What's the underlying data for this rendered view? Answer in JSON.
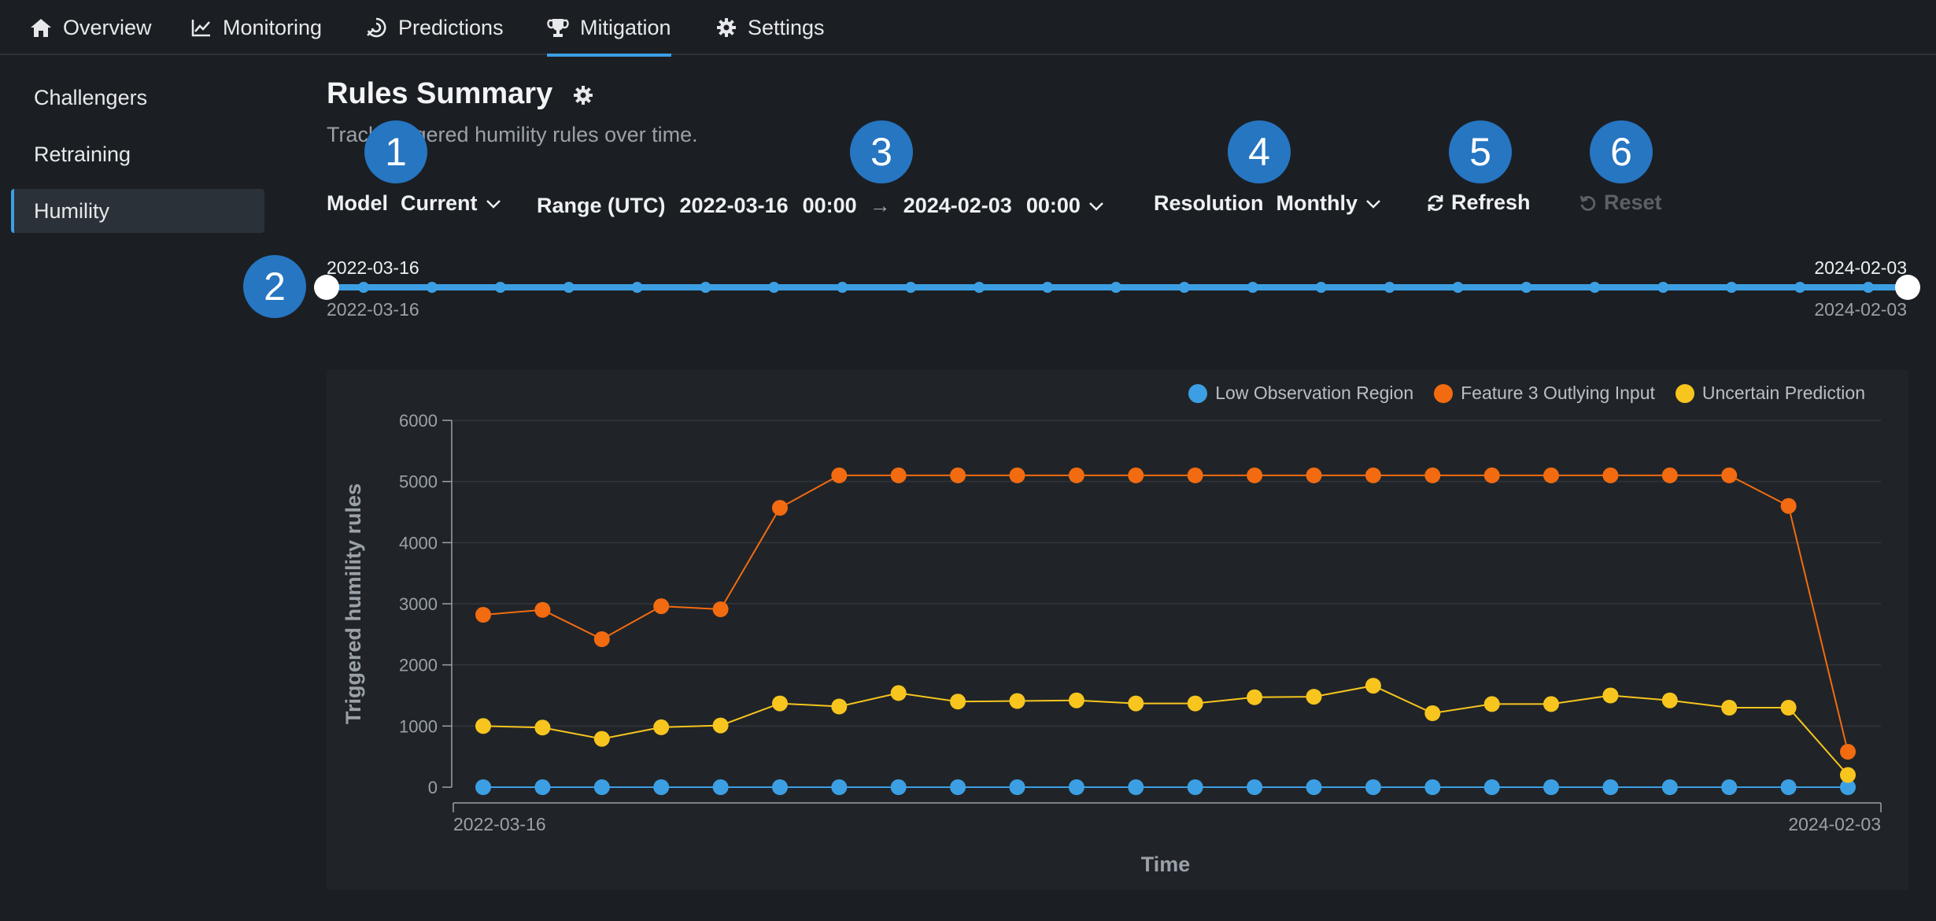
{
  "nav": {
    "tabs": [
      {
        "label": "Overview"
      },
      {
        "label": "Monitoring"
      },
      {
        "label": "Predictions"
      },
      {
        "label": "Mitigation"
      },
      {
        "label": "Settings"
      }
    ],
    "active_index": 3
  },
  "sidebar": {
    "items": [
      {
        "label": "Challengers"
      },
      {
        "label": "Retraining"
      },
      {
        "label": "Humility"
      }
    ],
    "active_index": 2
  },
  "header": {
    "title": "Rules Summary",
    "subtitle": "Track triggered humility rules over time."
  },
  "controls": {
    "model_label": "Model",
    "model_value": "Current",
    "range_label": "Range (UTC)",
    "range_start_date": "2022-03-16",
    "range_start_time": "00:00",
    "range_arrow": "→",
    "range_end_date": "2024-02-03",
    "range_end_time": "00:00",
    "resolution_label": "Resolution",
    "resolution_value": "Monthly",
    "refresh_label": "Refresh",
    "reset_label": "Reset"
  },
  "badges": [
    "1",
    "2",
    "3",
    "4",
    "5",
    "6"
  ],
  "slider": {
    "start_top": "2022-03-16",
    "end_top": "2024-02-03",
    "start_bottom": "2022-03-16",
    "end_bottom": "2024-02-03",
    "tick_count": 23
  },
  "colors": {
    "accent": "#3d9fe3",
    "low_observation": "#3d9fe3",
    "outlying": "#f26b10",
    "uncertain": "#f7c51e"
  },
  "chart_data": {
    "type": "line",
    "title": "",
    "xlabel": "Time",
    "ylabel": "Triggered humility rules",
    "ylim": [
      0,
      6000
    ],
    "yticks": [
      0,
      1000,
      2000,
      3000,
      4000,
      5000,
      6000
    ],
    "x_tick_labels": [
      "2022-03-16",
      "2024-02-03"
    ],
    "grid": true,
    "legend_position": "top-right",
    "x": [
      1,
      2,
      3,
      4,
      5,
      6,
      7,
      8,
      9,
      10,
      11,
      12,
      13,
      14,
      15,
      16,
      17,
      18,
      19,
      20,
      21,
      22,
      23,
      24
    ],
    "series": [
      {
        "name": "Low Observation Region",
        "color": "#3d9fe3",
        "values": [
          0,
          0,
          0,
          0,
          0,
          0,
          0,
          0,
          0,
          0,
          0,
          0,
          0,
          0,
          0,
          0,
          0,
          0,
          0,
          0,
          0,
          0,
          0,
          0
        ]
      },
      {
        "name": "Feature 3 Outlying Input",
        "color": "#f26b10",
        "values": [
          2820,
          2900,
          2420,
          2960,
          2910,
          4570,
          5100,
          5100,
          5100,
          5100,
          5100,
          5100,
          5100,
          5100,
          5100,
          5100,
          5100,
          5100,
          5100,
          5100,
          5100,
          5100,
          4600,
          580
        ]
      },
      {
        "name": "Uncertain Prediction",
        "color": "#f7c51e",
        "values": [
          1000,
          975,
          790,
          980,
          1010,
          1370,
          1320,
          1540,
          1400,
          1410,
          1420,
          1370,
          1370,
          1470,
          1480,
          1660,
          1210,
          1360,
          1360,
          1500,
          1420,
          1300,
          1300,
          200
        ]
      }
    ]
  }
}
